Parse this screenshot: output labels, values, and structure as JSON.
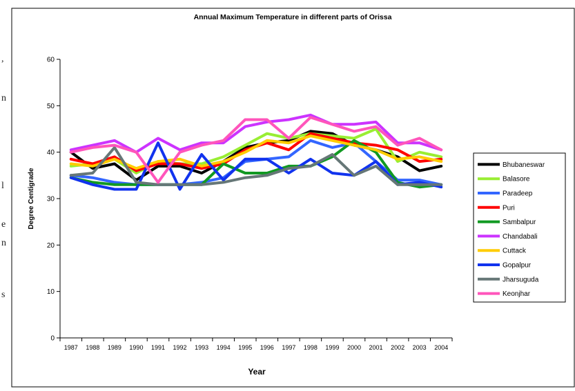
{
  "chart_data": {
    "type": "line",
    "title": "Annual Maximum Temperature in different parts of Orissa",
    "xlabel": "Year",
    "ylabel": "Degree Centigrade",
    "ylim": [
      0,
      60
    ],
    "yticks": [
      0,
      10,
      20,
      30,
      40,
      50,
      60
    ],
    "grid": false,
    "legend_position": "right",
    "categories": [
      "1987",
      "1988",
      "1989",
      "1990",
      "1991",
      "1992",
      "1993",
      "1994",
      "1995",
      "1996",
      "1997",
      "1998",
      "1999",
      "2000",
      "2001",
      "2002",
      "2003",
      "2004"
    ],
    "series": [
      {
        "name": "Bhubaneswar",
        "color": "#000000",
        "values": [
          40,
          36.5,
          37.5,
          34,
          37,
          37,
          35.5,
          38,
          41,
          42,
          42.5,
          44.5,
          44,
          41.5,
          40.5,
          39,
          36,
          37
        ]
      },
      {
        "name": "Balasore",
        "color": "#99ee33",
        "values": [
          37,
          37.5,
          38.5,
          35.5,
          38,
          37.5,
          37.5,
          39,
          41.5,
          44,
          43,
          44,
          43.5,
          43,
          45,
          38,
          40,
          39
        ]
      },
      {
        "name": "Paradeep",
        "color": "#3366ff",
        "values": [
          35,
          34.5,
          33.5,
          33,
          33,
          33,
          33.5,
          34.5,
          38,
          38.5,
          39,
          42.5,
          41,
          42,
          38,
          34,
          34,
          33
        ]
      },
      {
        "name": "Puri",
        "color": "#ff0000",
        "values": [
          38.5,
          37.5,
          39,
          36,
          37.5,
          37.5,
          36.5,
          37.5,
          40.5,
          42,
          40.5,
          44,
          43,
          42,
          41.5,
          40.5,
          38,
          38.5
        ]
      },
      {
        "name": "Sambalpur",
        "color": "#119922",
        "values": [
          34.5,
          33.5,
          33,
          33,
          33,
          33,
          33,
          37.5,
          35.5,
          35.5,
          37,
          37,
          39,
          42.5,
          40,
          33.5,
          32.5,
          33
        ]
      },
      {
        "name": "Chandabali",
        "color": "#cc33ff",
        "values": [
          40.5,
          41.5,
          42.5,
          40,
          43,
          40.5,
          42,
          42,
          45.5,
          46.5,
          47,
          48,
          46,
          46,
          46.5,
          42,
          42,
          40.5
        ]
      },
      {
        "name": "Cuttack",
        "color": "#ffcc00",
        "values": [
          37.5,
          37,
          38.5,
          36.5,
          38,
          38.5,
          37,
          38,
          40,
          42.5,
          42,
          43.5,
          42.5,
          41.5,
          40.5,
          38.5,
          39,
          38
        ]
      },
      {
        "name": "Gopalpur",
        "color": "#1133ee",
        "values": [
          34.5,
          33,
          32,
          32,
          42,
          32,
          39.5,
          34,
          38.5,
          38.5,
          35.5,
          38.5,
          35.5,
          35,
          38,
          33,
          33.5,
          32.5
        ]
      },
      {
        "name": "Jharsuguda",
        "color": "#667777",
        "values": [
          35,
          35.5,
          41,
          33.5,
          33,
          33,
          33,
          33.5,
          34.5,
          35,
          36.5,
          37,
          39.5,
          35,
          37,
          33,
          33,
          33
        ]
      },
      {
        "name": "Keonjhar",
        "color": "#ff55bb",
        "values": [
          40,
          41,
          41.5,
          40,
          33.5,
          40,
          41.5,
          42.5,
          47,
          47,
          43,
          47.5,
          46,
          44.5,
          45.5,
          41.5,
          43,
          40.5
        ]
      }
    ]
  },
  "page_edge": {
    "chars": [
      ",",
      "n",
      "l",
      "e",
      "n",
      "s"
    ]
  }
}
